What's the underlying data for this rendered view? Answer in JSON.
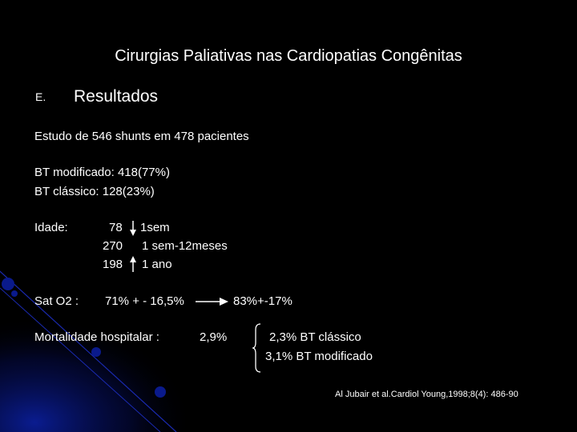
{
  "slide": {
    "title": "Cirurgias Paliativas nas Cardiopatias Congênitas",
    "section_letter": "E.",
    "section_heading": "Resultados",
    "study_line": "Estudo de 546 shunts em 478 pacientes",
    "bt_modified": "BT modificado: 418(77%)",
    "bt_classic": "BT clássico: 128(23%)",
    "age": {
      "label": "Idade:",
      "rows": [
        {
          "count": "78",
          "range": "1sem"
        },
        {
          "count": "270",
          "range": "1 sem-12meses"
        },
        {
          "count": "198",
          "range": "1 ano"
        }
      ]
    },
    "sat": {
      "label": "Sat O2 :",
      "before": "71% + - 16,5%",
      "after": "83%+-17%"
    },
    "mortality": {
      "label": "Mortalidade hospitalar :",
      "total": "2,9%",
      "classic": "2,3% BT clássico",
      "modified": "3,1% BT modificado"
    },
    "citation": "Al Jubair et al.Cardiol Young,1998;8(4): 486-90"
  },
  "colors": {
    "background": "#000000",
    "text": "#ffffff",
    "accent_blue": "#0a1a8c",
    "deco_line": "#1a2ab0"
  }
}
